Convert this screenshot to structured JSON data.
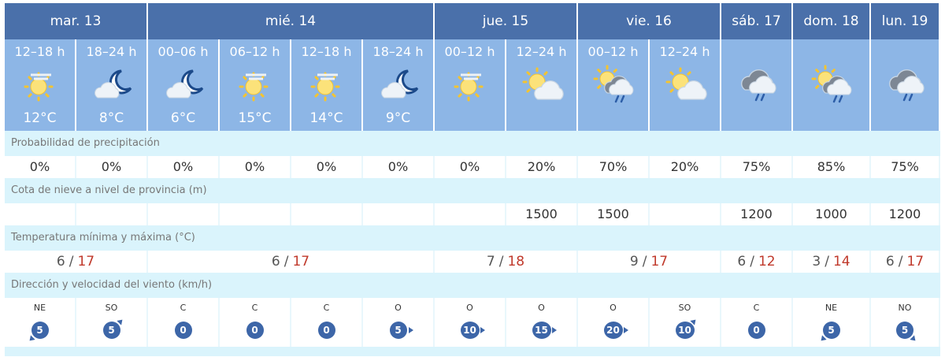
{
  "days": [
    {
      "label": "mar. 13",
      "span": 2
    },
    {
      "label": "mié. 14",
      "span": 4
    },
    {
      "label": "jue. 15",
      "span": 2
    },
    {
      "label": "vie. 16",
      "span": 2
    },
    {
      "label": "sáb. 17",
      "span": 1
    },
    {
      "label": "dom. 18",
      "span": 1
    },
    {
      "label": "lun. 19",
      "span": 1
    }
  ],
  "periods": [
    {
      "time": "12–18 h",
      "icon": "sun-haze-icon",
      "temp": "12°C"
    },
    {
      "time": "18–24 h",
      "icon": "moon-cloud-icon",
      "temp": "8°C"
    },
    {
      "time": "00–06 h",
      "icon": "moon-cloud-icon",
      "temp": "6°C"
    },
    {
      "time": "06–12 h",
      "icon": "sun-haze-icon",
      "temp": "15°C"
    },
    {
      "time": "12–18 h",
      "icon": "sun-haze-icon",
      "temp": "14°C"
    },
    {
      "time": "18–24 h",
      "icon": "moon-cloud-icon",
      "temp": "9°C"
    },
    {
      "time": "00–12 h",
      "icon": "sun-haze-icon",
      "temp": ""
    },
    {
      "time": "12–24 h",
      "icon": "sun-cloud-icon",
      "temp": ""
    },
    {
      "time": "00–12 h",
      "icon": "sun-cloud-rain-icon",
      "temp": ""
    },
    {
      "time": "12–24 h",
      "icon": "sun-cloud-icon",
      "temp": ""
    },
    {
      "time": "",
      "icon": "cloud-rain-icon",
      "temp": ""
    },
    {
      "time": "",
      "icon": "sun-cloud-rain-icon",
      "temp": ""
    },
    {
      "time": "",
      "icon": "cloud-rain-icon",
      "temp": ""
    }
  ],
  "precip": {
    "label": "Probabilidad de precipitación",
    "values": [
      "0%",
      "0%",
      "0%",
      "0%",
      "0%",
      "0%",
      "0%",
      "20%",
      "70%",
      "20%",
      "75%",
      "85%",
      "75%"
    ]
  },
  "snow": {
    "label": "Cota de nieve a nivel de provincia (m)",
    "values": [
      "",
      "",
      "",
      "",
      "",
      "",
      "",
      "1500",
      "1500",
      "",
      "1200",
      "1000",
      "1200"
    ]
  },
  "temps": {
    "label": "Temperatura mínima y máxima (°C)",
    "values": [
      {
        "min": "6",
        "max": "17"
      },
      {
        "min": "6",
        "max": "17"
      },
      {
        "min": "7",
        "max": "18"
      },
      {
        "min": "9",
        "max": "17"
      },
      {
        "min": "6",
        "max": "12"
      },
      {
        "min": "3",
        "max": "14"
      },
      {
        "min": "6",
        "max": "17"
      }
    ],
    "separator": "/"
  },
  "wind": {
    "label": "Dirección y velocidad del viento (km/h)",
    "values": [
      {
        "dir": "NE",
        "speed": "5"
      },
      {
        "dir": "SO",
        "speed": "5"
      },
      {
        "dir": "C",
        "speed": "0"
      },
      {
        "dir": "C",
        "speed": "0"
      },
      {
        "dir": "C",
        "speed": "0"
      },
      {
        "dir": "O",
        "speed": "5"
      },
      {
        "dir": "O",
        "speed": "10"
      },
      {
        "dir": "O",
        "speed": "15"
      },
      {
        "dir": "O",
        "speed": "20"
      },
      {
        "dir": "SO",
        "speed": "10"
      },
      {
        "dir": "C",
        "speed": "0"
      },
      {
        "dir": "NE",
        "speed": "5"
      },
      {
        "dir": "NO",
        "speed": "5"
      }
    ]
  },
  "colors": {
    "header": "#4a70aa",
    "period": "#8db6e6",
    "label_row": "#daf4fc",
    "max_temp": "#c0392b",
    "wind_badge": "#3d66a8"
  }
}
